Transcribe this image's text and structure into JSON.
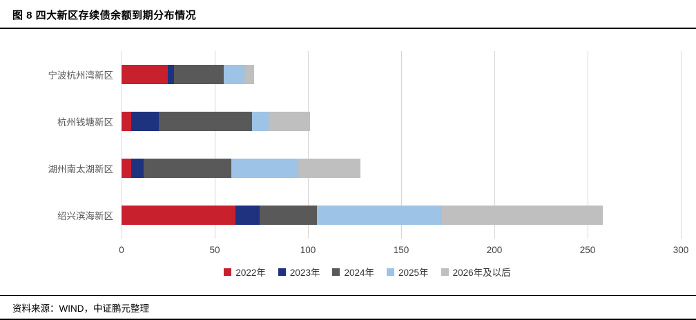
{
  "header": {
    "title": "图 8 四大新区存续债余额到期分布情况"
  },
  "footer": {
    "source": "资料来源：WIND，中证鹏元整理"
  },
  "chart_data": {
    "type": "bar",
    "orientation": "horizontal",
    "stacked": true,
    "title": "图 8 四大新区存续债余额到期分布情况",
    "categories": [
      "宁波杭州湾新区",
      "杭州钱塘新区",
      "湖州南太湖新区",
      "绍兴滨海新区"
    ],
    "series": [
      {
        "name": "2022年",
        "color": "#c9202e",
        "values": [
          25,
          5,
          5,
          61
        ]
      },
      {
        "name": "2023年",
        "color": "#1f3280",
        "values": [
          3,
          15,
          7,
          13
        ]
      },
      {
        "name": "2024年",
        "color": "#595959",
        "values": [
          27,
          50,
          47,
          31
        ]
      },
      {
        "name": "2025年",
        "color": "#9dc3e6",
        "values": [
          11,
          9,
          36,
          67
        ]
      },
      {
        "name": "2026年及以后",
        "color": "#bfbfbf",
        "values": [
          5,
          22,
          33,
          86
        ]
      }
    ],
    "xlim": [
      0,
      300
    ],
    "xticks": [
      0,
      50,
      100,
      150,
      200,
      250,
      300
    ],
    "xlabel": "",
    "ylabel": "",
    "grid": true,
    "legend_position": "bottom"
  }
}
